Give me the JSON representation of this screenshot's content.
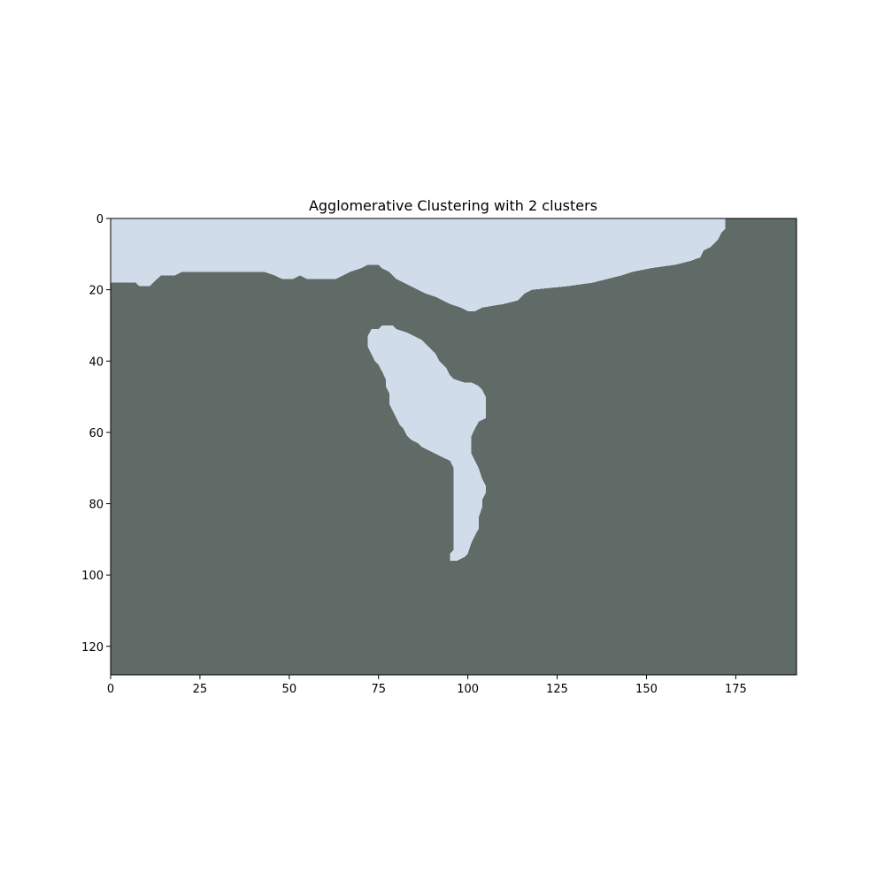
{
  "chart_data": {
    "type": "heatmap",
    "title": "Agglomerative Clustering with 2 clusters",
    "xlabel": "",
    "ylabel": "",
    "xlim": [
      0,
      192
    ],
    "ylim": [
      128,
      0
    ],
    "x_ticks": [
      0,
      25,
      50,
      75,
      100,
      125,
      150,
      175
    ],
    "y_ticks": [
      0,
      20,
      40,
      60,
      80,
      100,
      120
    ],
    "grid": false,
    "legend": "none",
    "colors": {
      "background_cluster": "#606a67",
      "foreground_cluster": "#d0dcea"
    },
    "regions": [
      {
        "cluster": "foreground",
        "description_points": "outline in data units (x, y)",
        "points": [
          [
            0,
            0
          ],
          [
            172,
            0
          ],
          [
            172,
            3
          ],
          [
            171,
            4
          ],
          [
            170,
            6
          ],
          [
            168,
            8
          ],
          [
            166,
            9
          ],
          [
            165,
            11
          ],
          [
            162,
            12
          ],
          [
            158,
            13
          ],
          [
            151,
            14
          ],
          [
            146,
            15
          ],
          [
            143,
            16
          ],
          [
            139,
            17
          ],
          [
            135,
            18
          ],
          [
            128,
            19
          ],
          [
            118,
            20
          ],
          [
            116,
            21
          ],
          [
            115,
            22
          ],
          [
            114,
            23
          ],
          [
            110,
            24
          ],
          [
            104,
            25
          ],
          [
            102,
            26
          ],
          [
            100,
            26
          ],
          [
            98,
            25
          ],
          [
            95,
            24
          ],
          [
            93,
            23
          ],
          [
            91,
            22
          ],
          [
            88,
            21
          ],
          [
            86,
            20
          ],
          [
            84,
            19
          ],
          [
            82,
            18
          ],
          [
            80,
            17
          ],
          [
            78,
            15
          ],
          [
            76,
            14
          ],
          [
            75,
            13
          ],
          [
            72,
            13
          ],
          [
            70,
            14
          ],
          [
            67,
            15
          ],
          [
            65,
            16
          ],
          [
            63,
            17
          ],
          [
            56,
            17
          ],
          [
            55,
            17
          ],
          [
            53,
            16
          ],
          [
            51,
            17
          ],
          [
            48,
            17
          ],
          [
            46,
            16
          ],
          [
            43,
            15
          ],
          [
            20,
            15
          ],
          [
            18,
            16
          ],
          [
            14,
            16
          ],
          [
            13,
            17
          ],
          [
            12,
            18
          ],
          [
            11,
            19
          ],
          [
            8,
            19
          ],
          [
            7,
            18
          ],
          [
            0,
            18
          ]
        ]
      },
      {
        "cluster": "foreground",
        "description_points": "outline in data units (x, y)",
        "points": [
          [
            78,
            30
          ],
          [
            79,
            30
          ],
          [
            80,
            31
          ],
          [
            83,
            32
          ],
          [
            85,
            33
          ],
          [
            87,
            34
          ],
          [
            89,
            36
          ],
          [
            91,
            38
          ],
          [
            92,
            40
          ],
          [
            94,
            42
          ],
          [
            95,
            44
          ],
          [
            96,
            45
          ],
          [
            99,
            46
          ],
          [
            101,
            46
          ],
          [
            103,
            47
          ],
          [
            104,
            48
          ],
          [
            105,
            50
          ],
          [
            105,
            56
          ],
          [
            103,
            57
          ],
          [
            102,
            59
          ],
          [
            101,
            61
          ],
          [
            101,
            64
          ],
          [
            101,
            66
          ],
          [
            102,
            68
          ],
          [
            103,
            70
          ],
          [
            104,
            73
          ],
          [
            105,
            75
          ],
          [
            105,
            77
          ],
          [
            104,
            79
          ],
          [
            104,
            81
          ],
          [
            103,
            84
          ],
          [
            103,
            87
          ],
          [
            102,
            89
          ],
          [
            101,
            91
          ],
          [
            100,
            94
          ],
          [
            99,
            95
          ],
          [
            97,
            96
          ],
          [
            95,
            96
          ],
          [
            95,
            94
          ],
          [
            96,
            93
          ],
          [
            96,
            90
          ],
          [
            96,
            87
          ],
          [
            96,
            83
          ],
          [
            96,
            79
          ],
          [
            96,
            74
          ],
          [
            96,
            70
          ],
          [
            95,
            68
          ],
          [
            93,
            67
          ],
          [
            91,
            66
          ],
          [
            89,
            65
          ],
          [
            87,
            64
          ],
          [
            86,
            63
          ],
          [
            84,
            62
          ],
          [
            83,
            61
          ],
          [
            82,
            59
          ],
          [
            81,
            58
          ],
          [
            80,
            56
          ],
          [
            79,
            54
          ],
          [
            78,
            52
          ],
          [
            78,
            49
          ],
          [
            77,
            47
          ],
          [
            77,
            45
          ],
          [
            76,
            43
          ],
          [
            75,
            41
          ],
          [
            74,
            40
          ],
          [
            73,
            38
          ],
          [
            72,
            36
          ],
          [
            72,
            33
          ],
          [
            73,
            31
          ],
          [
            75,
            31
          ],
          [
            76,
            30
          ]
        ]
      }
    ]
  }
}
